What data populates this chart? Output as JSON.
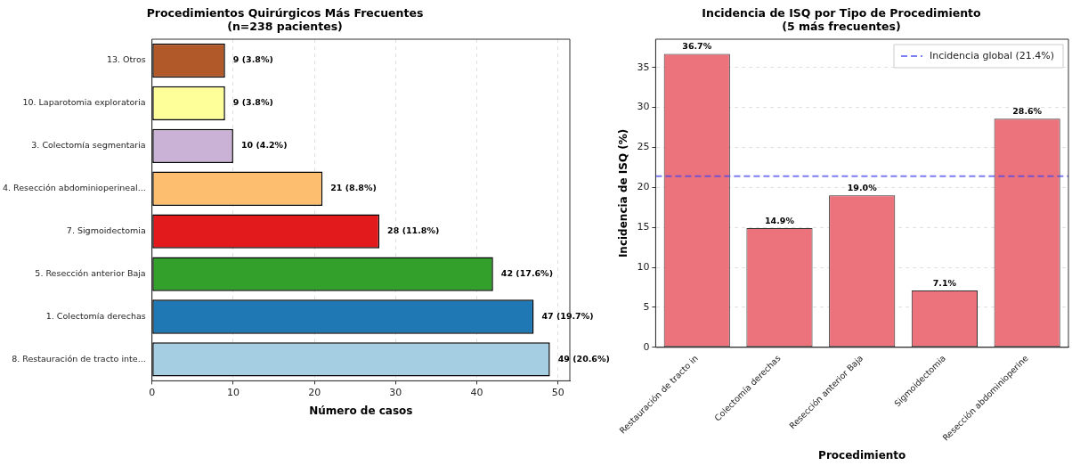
{
  "chart_data": [
    {
      "type": "bar",
      "orientation": "horizontal",
      "title": "Procedimientos Quirúrgicos Más Frecuentes\n(n=238 pacientes)",
      "xlabel": "Número de casos",
      "categories": [
        "13. Otros",
        "10. Laparotomia exploratoria",
        "3. Colectomía segmentaria",
        "4. Resección abdominioperineal...",
        "7. Sigmoidectomia",
        "5. Resección anterior Baja",
        "1. Colectomía derechas",
        "8. Restauración de tracto inte..."
      ],
      "values": [
        9,
        9,
        10,
        21,
        28,
        42,
        47,
        49
      ],
      "colors": [
        "#b15928",
        "#ffff99",
        "#cab2d6",
        "#fdbf6f",
        "#e31a1c",
        "#33a02c",
        "#1f78b4",
        "#a6cee3"
      ],
      "value_labels": [
        "9 (3.8%)",
        "9 (3.8%)",
        "10 (4.2%)",
        "21 (8.8%)",
        "28 (11.8%)",
        "42 (17.6%)",
        "47 (19.7%)",
        "49 (20.6%)"
      ],
      "xlim": [
        0,
        51.45
      ],
      "xticks": [
        0,
        10,
        20,
        30,
        40,
        50
      ],
      "grid": "x"
    },
    {
      "type": "bar",
      "title": "Incidencia de ISQ por Tipo de Procedimiento\n(5 más frecuentes)",
      "xlabel": "Procedimiento",
      "ylabel": "Incidencia de ISQ (%)",
      "categories": [
        "Restauración de tracto in",
        "Colectomía derechas",
        "Resección anterior Baja",
        "Sigmoidectomia",
        "Resección abdominioperine"
      ],
      "values": [
        36.7,
        14.9,
        19.0,
        7.1,
        28.6
      ],
      "color": "#ec727c",
      "value_labels": [
        "36.7%",
        "14.9%",
        "19.0%",
        "7.1%",
        "28.6%"
      ],
      "ylim": [
        0,
        38.535
      ],
      "yticks": [
        0,
        5,
        10,
        15,
        20,
        25,
        30,
        35
      ],
      "grid": "y",
      "ref_lines": [
        {
          "axis": "y",
          "value": 21.4,
          "label": "Incidencia global (21.4%)",
          "color": "#4444ee",
          "line_style": "dashed"
        }
      ],
      "legend": "top right"
    }
  ]
}
